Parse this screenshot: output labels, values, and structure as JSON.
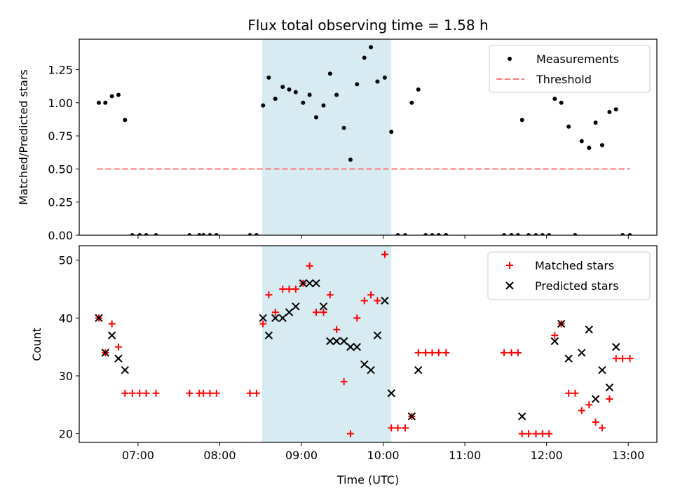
{
  "chart_data": [
    {
      "type": "scatter",
      "title": "Flux total observing time = 1.58 h",
      "xlabel": "",
      "ylabel": "Matched/Predicted stars",
      "ylim": [
        0,
        1.48
      ],
      "yticks": [
        "0.00",
        "0.25",
        "0.50",
        "0.75",
        "1.00",
        "1.25"
      ],
      "ytick_values": [
        0,
        0.25,
        0.5,
        0.75,
        1.0,
        1.25
      ],
      "legend": {
        "placement": "top-right",
        "entries": [
          "Measurements",
          "Threshold"
        ]
      },
      "highlight_span": {
        "x": [
          8.52,
          10.1
        ],
        "color": "#add8e6"
      },
      "threshold": {
        "name": "Threshold",
        "y": 0.5,
        "x": [
          6.5,
          13.02
        ],
        "color": "#ff7777"
      },
      "series": [
        {
          "name": "Measurements",
          "color": "#000000",
          "points": [
            [
              6.52,
              1.0
            ],
            [
              6.6,
              1.0
            ],
            [
              6.68,
              1.05
            ],
            [
              6.76,
              1.06
            ],
            [
              6.84,
              0.87
            ],
            [
              6.93,
              0
            ],
            [
              7.02,
              0
            ],
            [
              7.1,
              0
            ],
            [
              7.22,
              0
            ],
            [
              7.63,
              0
            ],
            [
              7.75,
              0
            ],
            [
              7.8,
              0
            ],
            [
              7.88,
              0
            ],
            [
              7.96,
              0
            ],
            [
              8.37,
              0
            ],
            [
              8.45,
              0
            ],
            [
              8.53,
              0.98
            ],
            [
              8.6,
              1.19
            ],
            [
              8.68,
              1.03
            ],
            [
              8.77,
              1.12
            ],
            [
              8.85,
              1.1
            ],
            [
              8.93,
              1.08
            ],
            [
              9.02,
              1.0
            ],
            [
              9.1,
              1.06
            ],
            [
              9.18,
              0.89
            ],
            [
              9.27,
              0.98
            ],
            [
              9.35,
              1.22
            ],
            [
              9.43,
              1.06
            ],
            [
              9.52,
              0.81
            ],
            [
              9.6,
              0.57
            ],
            [
              9.68,
              1.14
            ],
            [
              9.77,
              1.34
            ],
            [
              9.85,
              1.42
            ],
            [
              9.93,
              1.16
            ],
            [
              10.02,
              1.19
            ],
            [
              10.1,
              0.78
            ],
            [
              10.18,
              0
            ],
            [
              10.27,
              0
            ],
            [
              10.35,
              1.0
            ],
            [
              10.43,
              1.1
            ],
            [
              10.52,
              0
            ],
            [
              10.6,
              0
            ],
            [
              10.68,
              0
            ],
            [
              10.77,
              0
            ],
            [
              11.48,
              0
            ],
            [
              11.57,
              0
            ],
            [
              11.65,
              0
            ],
            [
              11.7,
              0.87
            ],
            [
              11.78,
              0
            ],
            [
              11.87,
              0
            ],
            [
              11.95,
              0
            ],
            [
              12.03,
              0
            ],
            [
              12.1,
              1.03
            ],
            [
              12.18,
              1.0
            ],
            [
              12.27,
              0.82
            ],
            [
              12.35,
              0
            ],
            [
              12.43,
              0.71
            ],
            [
              12.52,
              0.66
            ],
            [
              12.6,
              0.85
            ],
            [
              12.68,
              0.68
            ],
            [
              12.77,
              0.93
            ],
            [
              12.85,
              0.95
            ],
            [
              12.93,
              0
            ],
            [
              13.02,
              0
            ]
          ]
        }
      ]
    },
    {
      "type": "scatter",
      "title": "",
      "xlabel": "Time (UTC)",
      "ylabel": "Count",
      "ylim": [
        18.5,
        52.5
      ],
      "yticks": [
        "20",
        "30",
        "40",
        "50"
      ],
      "ytick_values": [
        20,
        30,
        40,
        50
      ],
      "xlim": [
        6.28,
        13.35
      ],
      "xticks": [
        "07:00",
        "08:00",
        "09:00",
        "10:00",
        "11:00",
        "12:00",
        "13:00"
      ],
      "xtick_values": [
        7,
        8,
        9,
        10,
        11,
        12,
        13
      ],
      "legend": {
        "placement": "top-right",
        "entries": [
          "Matched stars",
          "Predicted stars"
        ]
      },
      "highlight_span": {
        "x": [
          8.52,
          10.1
        ],
        "color": "#add8e6"
      },
      "series": [
        {
          "name": "Matched stars",
          "marker": "plus",
          "color": "#ff0000",
          "points": [
            [
              6.52,
              40
            ],
            [
              6.6,
              34
            ],
            [
              6.68,
              39
            ],
            [
              6.76,
              35
            ],
            [
              6.84,
              27
            ],
            [
              6.93,
              27
            ],
            [
              7.02,
              27
            ],
            [
              7.1,
              27
            ],
            [
              7.22,
              27
            ],
            [
              7.63,
              27
            ],
            [
              7.75,
              27
            ],
            [
              7.8,
              27
            ],
            [
              7.88,
              27
            ],
            [
              7.96,
              27
            ],
            [
              8.37,
              27
            ],
            [
              8.45,
              27
            ],
            [
              8.53,
              39
            ],
            [
              8.6,
              44
            ],
            [
              8.68,
              41
            ],
            [
              8.77,
              45
            ],
            [
              8.85,
              45
            ],
            [
              8.93,
              45
            ],
            [
              9.02,
              46
            ],
            [
              9.1,
              49
            ],
            [
              9.18,
              41
            ],
            [
              9.27,
              41
            ],
            [
              9.35,
              44
            ],
            [
              9.43,
              38
            ],
            [
              9.52,
              29
            ],
            [
              9.6,
              20
            ],
            [
              9.68,
              40
            ],
            [
              9.77,
              43
            ],
            [
              9.85,
              44
            ],
            [
              9.93,
              43
            ],
            [
              10.02,
              51
            ],
            [
              10.1,
              21
            ],
            [
              10.18,
              21
            ],
            [
              10.27,
              21
            ],
            [
              10.35,
              23
            ],
            [
              10.43,
              34
            ],
            [
              10.52,
              34
            ],
            [
              10.6,
              34
            ],
            [
              10.68,
              34
            ],
            [
              10.77,
              34
            ],
            [
              11.48,
              34
            ],
            [
              11.57,
              34
            ],
            [
              11.65,
              34
            ],
            [
              11.7,
              20
            ],
            [
              11.78,
              20
            ],
            [
              11.87,
              20
            ],
            [
              11.95,
              20
            ],
            [
              12.03,
              20
            ],
            [
              12.1,
              37
            ],
            [
              12.18,
              39
            ],
            [
              12.27,
              27
            ],
            [
              12.35,
              27
            ],
            [
              12.43,
              24
            ],
            [
              12.52,
              25
            ],
            [
              12.6,
              22
            ],
            [
              12.68,
              21
            ],
            [
              12.77,
              26
            ],
            [
              12.85,
              33
            ],
            [
              12.93,
              33
            ],
            [
              13.02,
              33
            ]
          ]
        },
        {
          "name": "Predicted stars",
          "marker": "x",
          "color": "#000000",
          "points": [
            [
              6.52,
              40
            ],
            [
              6.6,
              34
            ],
            [
              6.68,
              37
            ],
            [
              6.76,
              33
            ],
            [
              6.84,
              31
            ],
            [
              8.53,
              40
            ],
            [
              8.6,
              37
            ],
            [
              8.68,
              40
            ],
            [
              8.77,
              40
            ],
            [
              8.85,
              41
            ],
            [
              8.93,
              42
            ],
            [
              9.02,
              46
            ],
            [
              9.1,
              46
            ],
            [
              9.18,
              46
            ],
            [
              9.27,
              42
            ],
            [
              9.35,
              36
            ],
            [
              9.43,
              36
            ],
            [
              9.52,
              36
            ],
            [
              9.6,
              35
            ],
            [
              9.68,
              35
            ],
            [
              9.77,
              32
            ],
            [
              9.85,
              31
            ],
            [
              9.93,
              37
            ],
            [
              10.02,
              43
            ],
            [
              10.1,
              27
            ],
            [
              10.35,
              23
            ],
            [
              10.43,
              31
            ],
            [
              11.7,
              23
            ],
            [
              12.1,
              36
            ],
            [
              12.18,
              39
            ],
            [
              12.27,
              33
            ],
            [
              12.43,
              34
            ],
            [
              12.52,
              38
            ],
            [
              12.6,
              26
            ],
            [
              12.68,
              31
            ],
            [
              12.77,
              28
            ],
            [
              12.85,
              35
            ]
          ]
        }
      ]
    }
  ]
}
